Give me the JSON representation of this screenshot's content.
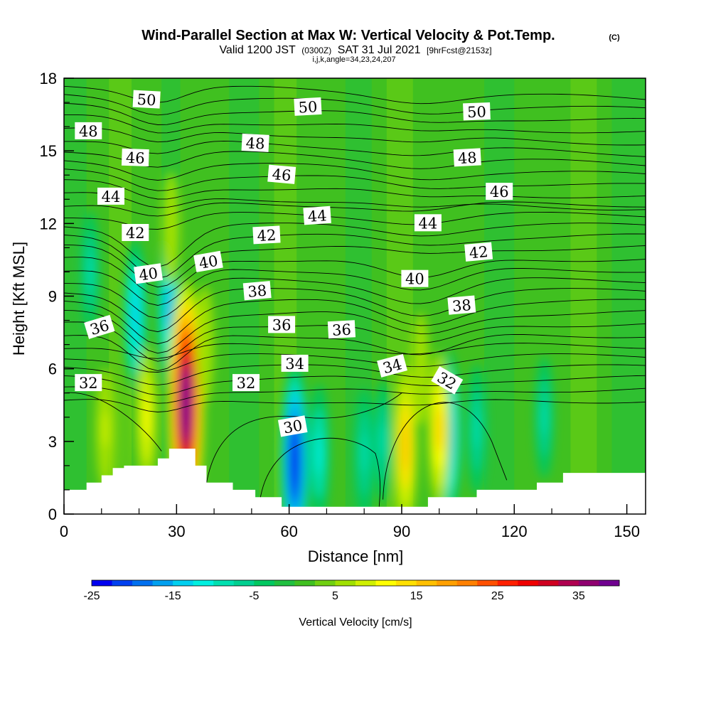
{
  "title": {
    "main": "Wind-Parallel Section at Max W: Vertical Velocity & Pot.Temp.",
    "copyright": "(C)",
    "valid_prefix": "Valid 1200 JST",
    "valid_utc": "(0300Z)",
    "valid_date": "SAT 31 Jul 2021",
    "forecast": "[9hrFcst@2153z]",
    "indices": "i,j,k,angle=34,23,24,207"
  },
  "chart_data": {
    "type": "heatmap",
    "xlabel": "Distance [nm]",
    "ylabel": "Height [Kft MSL]",
    "xlim": [
      0,
      155
    ],
    "ylim": [
      0,
      18
    ],
    "x_ticks": [
      "0",
      "30",
      "60",
      "90",
      "120",
      "150"
    ],
    "y_ticks": [
      "0",
      "3",
      "6",
      "9",
      "12",
      "15",
      "18"
    ],
    "colorbar": {
      "label": "Vertical Velocity [cm/s]",
      "tick_labels": [
        "-25",
        "-15",
        "-5",
        "5",
        "15",
        "25",
        "35"
      ],
      "colors": [
        "#0000f0",
        "#0040f0",
        "#0070f0",
        "#00a0f0",
        "#00d0f0",
        "#00f0e0",
        "#00e0b0",
        "#00d090",
        "#00c860",
        "#20c040",
        "#40c020",
        "#70d010",
        "#a0e000",
        "#d0f000",
        "#ffff00",
        "#ffe000",
        "#ffc000",
        "#ffa000",
        "#ff8000",
        "#ff5000",
        "#ff2000",
        "#f00000",
        "#d00020",
        "#b00050",
        "#900070",
        "#700090"
      ]
    },
    "updrafts": [
      {
        "x": 32.5,
        "y": 4.5,
        "w": 38
      },
      {
        "x": 91,
        "y": 2.8,
        "w": 17
      },
      {
        "x": 100,
        "y": 3.5,
        "w": 15
      },
      {
        "x": 22,
        "y": 4,
        "w": 12
      },
      {
        "x": 11,
        "y": 3.5,
        "w": 8
      },
      {
        "x": 37.5,
        "y": 7,
        "w": 7
      },
      {
        "x": 28.5,
        "y": 11.8,
        "w": 6
      },
      {
        "x": 95,
        "y": 6,
        "w": 6
      }
    ],
    "downdrafts": [
      {
        "x": 61.5,
        "y": 2.2,
        "w": -25
      },
      {
        "x": 102.5,
        "y": 3.3,
        "w": -18
      },
      {
        "x": 28,
        "y": 8.5,
        "w": -16
      },
      {
        "x": 19,
        "y": 8.2,
        "w": -15
      },
      {
        "x": 7,
        "y": 10,
        "w": -8
      },
      {
        "x": 68,
        "y": 2.5,
        "w": -12
      },
      {
        "x": 80,
        "y": 2.5,
        "w": -10
      },
      {
        "x": 85,
        "y": 3,
        "w": -8
      },
      {
        "x": 110,
        "y": 3.5,
        "w": -10
      },
      {
        "x": 128,
        "y": 4,
        "w": -8
      }
    ],
    "terrain": [
      [
        0,
        1
      ],
      [
        6,
        1
      ],
      [
        6,
        1.3
      ],
      [
        10,
        1.3
      ],
      [
        10,
        1.6
      ],
      [
        13,
        1.6
      ],
      [
        13,
        1.9
      ],
      [
        16,
        1.9
      ],
      [
        16,
        2.0
      ],
      [
        25,
        2.0
      ],
      [
        25,
        2.3
      ],
      [
        28,
        2.3
      ],
      [
        28,
        2.7
      ],
      [
        35,
        2.7
      ],
      [
        35,
        2.0
      ],
      [
        38,
        2.0
      ],
      [
        38,
        1.3
      ],
      [
        45,
        1.3
      ],
      [
        45,
        1.0
      ],
      [
        51,
        1.0
      ],
      [
        51,
        0.7
      ],
      [
        58,
        0.7
      ],
      [
        58,
        0.3
      ],
      [
        87,
        0.3
      ],
      [
        87,
        0.3
      ],
      [
        97,
        0.3
      ],
      [
        97,
        0.7
      ],
      [
        110,
        0.7
      ],
      [
        110,
        1.0
      ],
      [
        126,
        1.0
      ],
      [
        126,
        1.3
      ],
      [
        133,
        1.3
      ],
      [
        133,
        1.7
      ],
      [
        155,
        1.7
      ]
    ],
    "contour_labels": [
      {
        "text": "50",
        "x": 22,
        "y": 17.1,
        "angle": 3
      },
      {
        "text": "50",
        "x": 65,
        "y": 16.8,
        "angle": -3
      },
      {
        "text": "50",
        "x": 110,
        "y": 16.6,
        "angle": -2
      },
      {
        "text": "48",
        "x": 6.5,
        "y": 15.8,
        "angle": 0
      },
      {
        "text": "48",
        "x": 51,
        "y": 15.3,
        "angle": 3
      },
      {
        "text": "48",
        "x": 107.5,
        "y": 14.7,
        "angle": -3
      },
      {
        "text": "46",
        "x": 19,
        "y": 14.7,
        "angle": 2
      },
      {
        "text": "46",
        "x": 58,
        "y": 14.0,
        "angle": 5
      },
      {
        "text": "46",
        "x": 116,
        "y": 13.3,
        "angle": 0
      },
      {
        "text": "44",
        "x": 12.5,
        "y": 13.1,
        "angle": 0
      },
      {
        "text": "44",
        "x": 67.5,
        "y": 12.3,
        "angle": -4
      },
      {
        "text": "44",
        "x": 97,
        "y": 12.0,
        "angle": 0
      },
      {
        "text": "42",
        "x": 19,
        "y": 11.6,
        "angle": 0
      },
      {
        "text": "42",
        "x": 54,
        "y": 11.5,
        "angle": -3
      },
      {
        "text": "42",
        "x": 110.5,
        "y": 10.8,
        "angle": -5
      },
      {
        "text": "40",
        "x": 22.5,
        "y": 9.9,
        "angle": -8
      },
      {
        "text": "40",
        "x": 38.5,
        "y": 10.4,
        "angle": -10
      },
      {
        "text": "40",
        "x": 93.5,
        "y": 9.7,
        "angle": 0
      },
      {
        "text": "38",
        "x": 51.5,
        "y": 9.2,
        "angle": -5
      },
      {
        "text": "38",
        "x": 106,
        "y": 8.6,
        "angle": -5
      },
      {
        "text": "36",
        "x": 9.5,
        "y": 7.7,
        "angle": -17
      },
      {
        "text": "36",
        "x": 58,
        "y": 7.8,
        "angle": 0
      },
      {
        "text": "36",
        "x": 74,
        "y": 7.6,
        "angle": -3
      },
      {
        "text": "34",
        "x": 61.5,
        "y": 6.2,
        "angle": 0
      },
      {
        "text": "34",
        "x": 87.5,
        "y": 6.1,
        "angle": -15
      },
      {
        "text": "32",
        "x": 6.5,
        "y": 5.4,
        "angle": 0
      },
      {
        "text": "32",
        "x": 48.5,
        "y": 5.4,
        "angle": 0
      },
      {
        "text": "32",
        "x": 102,
        "y": 5.5,
        "angle": 30
      },
      {
        "text": "30",
        "x": 61,
        "y": 3.6,
        "angle": -10
      }
    ]
  }
}
